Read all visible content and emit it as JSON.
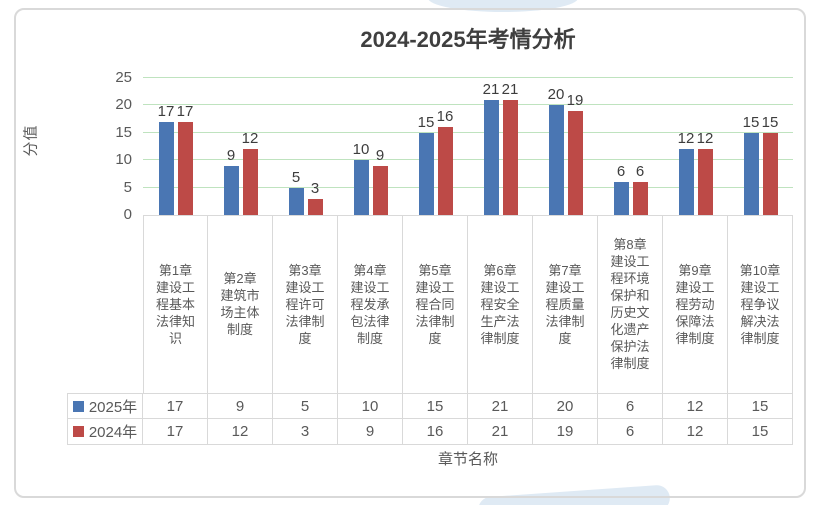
{
  "chart_data": {
    "type": "bar",
    "title": "2024-2025年考情分析",
    "xlabel": "章节名称",
    "ylabel": "分值",
    "ylim": [
      0,
      25
    ],
    "yticks": [
      0,
      5,
      10,
      15,
      20,
      25
    ],
    "grid": true,
    "gridline_color": "#bfe3bf",
    "legend_position": "data-table-left",
    "categories": [
      "第1章建设工程基本法律知识",
      "第2章建筑市场主体制度",
      "第3章建设工程许可法律制度",
      "第4章建设工程发承包法律制度",
      "第5章建设工程合同法律制度",
      "第6章建设工程安全生产法律制度",
      "第7章建设工程质量法律制度",
      "第8章建设工程环境保护和历史文化遗产保护法律制度",
      "第9章建设工程劳动保障法律制度",
      "第10章建设工程争议解决法律制度"
    ],
    "series": [
      {
        "name": "2025年",
        "color": "#4a76b3",
        "values": [
          17,
          9,
          5,
          10,
          15,
          21,
          20,
          6,
          12,
          15
        ]
      },
      {
        "name": "2024年",
        "color": "#bd4a47",
        "values": [
          17,
          12,
          3,
          9,
          16,
          21,
          19,
          6,
          12,
          15
        ]
      }
    ]
  },
  "colors": {
    "frame_border": "#d9d9d9",
    "axis_text": "#595959",
    "title_text": "#3f3f3f",
    "watermark": "#dfeaf4"
  }
}
